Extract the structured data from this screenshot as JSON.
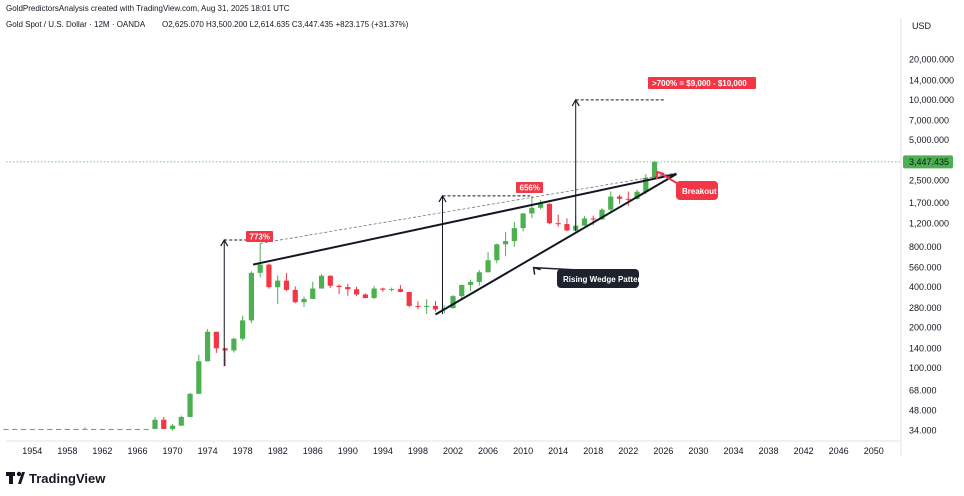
{
  "header": {
    "credit": "GoldPredictorsAnalysis created with TradingView.com, Aug 31, 2025 18:01 UTC",
    "symbol_line": "Gold Spot / U.S. Dollar · 12M · OANDA",
    "ohlc": "O2,625.070  H3,500.200  L2,614.635  C3,447.435  +823.175 (+31.37%)"
  },
  "price_axis": {
    "currency": "USD",
    "ticks": [
      "20,000.000",
      "14,000.000",
      "10,000.000",
      "7,000.000",
      "5,000.000",
      "3,447.435",
      "2,500.000",
      "1,700.000",
      "1,200.000",
      "800.000",
      "560.000",
      "400.000",
      "280.000",
      "200.000",
      "140.000",
      "100.000",
      "68.000",
      "48.000",
      "34.000"
    ],
    "current_price": "3,447.435"
  },
  "time_axis": {
    "ticks": [
      "1954",
      "1958",
      "1962",
      "1966",
      "1970",
      "1974",
      "1978",
      "1982",
      "1986",
      "1990",
      "1994",
      "1998",
      "2002",
      "2006",
      "2010",
      "2014",
      "2018",
      "2022",
      "2026",
      "2030",
      "2034",
      "2038",
      "2042",
      "2046",
      "2050"
    ]
  },
  "annotations": {
    "pct_1980": "773%",
    "pct_2011": "656%",
    "target": ">700% = $9,000 - $10,000",
    "breakout": "Breakout",
    "pattern": "Rising Wedge Pattern"
  },
  "brand": "TradingView",
  "colors": {
    "up": "#4caf50",
    "down": "#f23645",
    "callout_dark": "#1e222d",
    "price_tag": "#4caf50"
  },
  "chart_data": {
    "type": "candlestick",
    "title": "Gold Spot / U.S. Dollar · 12M · OANDA",
    "x_unit": "year",
    "y_scale": "log",
    "ylim": [
      31,
      30000
    ],
    "xlim": [
      1951,
      2053
    ],
    "candles": [
      {
        "year": 1951,
        "open": 35,
        "high": 35,
        "low": 35,
        "close": 35
      },
      {
        "year": 1952,
        "open": 35,
        "high": 35,
        "low": 35,
        "close": 35
      },
      {
        "year": 1953,
        "open": 35,
        "high": 35,
        "low": 35,
        "close": 35
      },
      {
        "year": 1954,
        "open": 35,
        "high": 35,
        "low": 35,
        "close": 35
      },
      {
        "year": 1955,
        "open": 35,
        "high": 35,
        "low": 35,
        "close": 35
      },
      {
        "year": 1956,
        "open": 35,
        "high": 35,
        "low": 35,
        "close": 35
      },
      {
        "year": 1957,
        "open": 35,
        "high": 35,
        "low": 35,
        "close": 35
      },
      {
        "year": 1958,
        "open": 35,
        "high": 35,
        "low": 35,
        "close": 35
      },
      {
        "year": 1959,
        "open": 35,
        "high": 35,
        "low": 35,
        "close": 35
      },
      {
        "year": 1960,
        "open": 35,
        "high": 36,
        "low": 35,
        "close": 35
      },
      {
        "year": 1961,
        "open": 35,
        "high": 35,
        "low": 35,
        "close": 35
      },
      {
        "year": 1962,
        "open": 35,
        "high": 35,
        "low": 35,
        "close": 35
      },
      {
        "year": 1963,
        "open": 35,
        "high": 35,
        "low": 35,
        "close": 35
      },
      {
        "year": 1964,
        "open": 35,
        "high": 35,
        "low": 35,
        "close": 35
      },
      {
        "year": 1965,
        "open": 35,
        "high": 35,
        "low": 35,
        "close": 35
      },
      {
        "year": 1966,
        "open": 35,
        "high": 35,
        "low": 35,
        "close": 35
      },
      {
        "year": 1967,
        "open": 35,
        "high": 35,
        "low": 35,
        "close": 35
      },
      {
        "year": 1968,
        "open": 35,
        "high": 43,
        "low": 35,
        "close": 41
      },
      {
        "year": 1969,
        "open": 41,
        "high": 43,
        "low": 35,
        "close": 35
      },
      {
        "year": 1970,
        "open": 35,
        "high": 38,
        "low": 34,
        "close": 37
      },
      {
        "year": 1971,
        "open": 37,
        "high": 44,
        "low": 37,
        "close": 43
      },
      {
        "year": 1972,
        "open": 43,
        "high": 65,
        "low": 43,
        "close": 64
      },
      {
        "year": 1973,
        "open": 64,
        "high": 125,
        "low": 64,
        "close": 112
      },
      {
        "year": 1974,
        "open": 112,
        "high": 195,
        "low": 112,
        "close": 186
      },
      {
        "year": 1975,
        "open": 186,
        "high": 186,
        "low": 129,
        "close": 140
      },
      {
        "year": 1976,
        "open": 140,
        "high": 141,
        "low": 103,
        "close": 135
      },
      {
        "year": 1977,
        "open": 135,
        "high": 168,
        "low": 130,
        "close": 165
      },
      {
        "year": 1978,
        "open": 165,
        "high": 245,
        "low": 160,
        "close": 226
      },
      {
        "year": 1979,
        "open": 226,
        "high": 524,
        "low": 216,
        "close": 512
      },
      {
        "year": 1980,
        "open": 512,
        "high": 850,
        "low": 474,
        "close": 590
      },
      {
        "year": 1981,
        "open": 590,
        "high": 600,
        "low": 390,
        "close": 400
      },
      {
        "year": 1982,
        "open": 400,
        "high": 490,
        "low": 300,
        "close": 448
      },
      {
        "year": 1983,
        "open": 448,
        "high": 510,
        "low": 375,
        "close": 382
      },
      {
        "year": 1984,
        "open": 382,
        "high": 406,
        "low": 303,
        "close": 309
      },
      {
        "year": 1985,
        "open": 309,
        "high": 340,
        "low": 284,
        "close": 327
      },
      {
        "year": 1986,
        "open": 327,
        "high": 440,
        "low": 326,
        "close": 391
      },
      {
        "year": 1987,
        "open": 391,
        "high": 500,
        "low": 390,
        "close": 487
      },
      {
        "year": 1988,
        "open": 487,
        "high": 490,
        "low": 395,
        "close": 410
      },
      {
        "year": 1989,
        "open": 410,
        "high": 420,
        "low": 356,
        "close": 401
      },
      {
        "year": 1990,
        "open": 401,
        "high": 424,
        "low": 345,
        "close": 386
      },
      {
        "year": 1991,
        "open": 386,
        "high": 403,
        "low": 343,
        "close": 353
      },
      {
        "year": 1992,
        "open": 353,
        "high": 360,
        "low": 330,
        "close": 332
      },
      {
        "year": 1993,
        "open": 332,
        "high": 407,
        "low": 326,
        "close": 391
      },
      {
        "year": 1994,
        "open": 391,
        "high": 397,
        "low": 370,
        "close": 383
      },
      {
        "year": 1995,
        "open": 383,
        "high": 397,
        "low": 372,
        "close": 387
      },
      {
        "year": 1996,
        "open": 387,
        "high": 415,
        "low": 367,
        "close": 369
      },
      {
        "year": 1997,
        "open": 369,
        "high": 367,
        "low": 283,
        "close": 290
      },
      {
        "year": 1998,
        "open": 290,
        "high": 313,
        "low": 273,
        "close": 288
      },
      {
        "year": 1999,
        "open": 288,
        "high": 326,
        "low": 252,
        "close": 290
      },
      {
        "year": 2000,
        "open": 290,
        "high": 316,
        "low": 263,
        "close": 273
      },
      {
        "year": 2001,
        "open": 273,
        "high": 293,
        "low": 255,
        "close": 279
      },
      {
        "year": 2002,
        "open": 279,
        "high": 349,
        "low": 278,
        "close": 343
      },
      {
        "year": 2003,
        "open": 343,
        "high": 417,
        "low": 320,
        "close": 416
      },
      {
        "year": 2004,
        "open": 416,
        "high": 456,
        "low": 373,
        "close": 438
      },
      {
        "year": 2005,
        "open": 438,
        "high": 537,
        "low": 411,
        "close": 517
      },
      {
        "year": 2006,
        "open": 517,
        "high": 730,
        "low": 515,
        "close": 636
      },
      {
        "year": 2007,
        "open": 636,
        "high": 845,
        "low": 603,
        "close": 836
      },
      {
        "year": 2008,
        "open": 836,
        "high": 1033,
        "low": 681,
        "close": 884
      },
      {
        "year": 2009,
        "open": 884,
        "high": 1226,
        "low": 802,
        "close": 1104
      },
      {
        "year": 2010,
        "open": 1104,
        "high": 1431,
        "low": 1044,
        "close": 1421
      },
      {
        "year": 2011,
        "open": 1421,
        "high": 1921,
        "low": 1308,
        "close": 1565
      },
      {
        "year": 2012,
        "open": 1565,
        "high": 1796,
        "low": 1527,
        "close": 1675
      },
      {
        "year": 2013,
        "open": 1675,
        "high": 1694,
        "low": 1180,
        "close": 1202
      },
      {
        "year": 2014,
        "open": 1202,
        "high": 1392,
        "low": 1132,
        "close": 1184
      },
      {
        "year": 2015,
        "open": 1184,
        "high": 1307,
        "low": 1046,
        "close": 1061
      },
      {
        "year": 2016,
        "open": 1061,
        "high": 1375,
        "low": 1046,
        "close": 1152
      },
      {
        "year": 2017,
        "open": 1152,
        "high": 1357,
        "low": 1146,
        "close": 1303
      },
      {
        "year": 2018,
        "open": 1303,
        "high": 1366,
        "low": 1160,
        "close": 1282
      },
      {
        "year": 2019,
        "open": 1282,
        "high": 1557,
        "low": 1266,
        "close": 1517
      },
      {
        "year": 2020,
        "open": 1517,
        "high": 2075,
        "low": 1451,
        "close": 1898
      },
      {
        "year": 2021,
        "open": 1898,
        "high": 1959,
        "low": 1676,
        "close": 1829
      },
      {
        "year": 2022,
        "open": 1829,
        "high": 2070,
        "low": 1614,
        "close": 1824
      },
      {
        "year": 2023,
        "open": 1824,
        "high": 2135,
        "low": 1804,
        "close": 2063
      },
      {
        "year": 2024,
        "open": 2063,
        "high": 2790,
        "low": 1984,
        "close": 2625
      },
      {
        "year": 2025,
        "open": 2625.07,
        "high": 3500.2,
        "low": 2614.635,
        "close": 3447.435
      }
    ]
  }
}
